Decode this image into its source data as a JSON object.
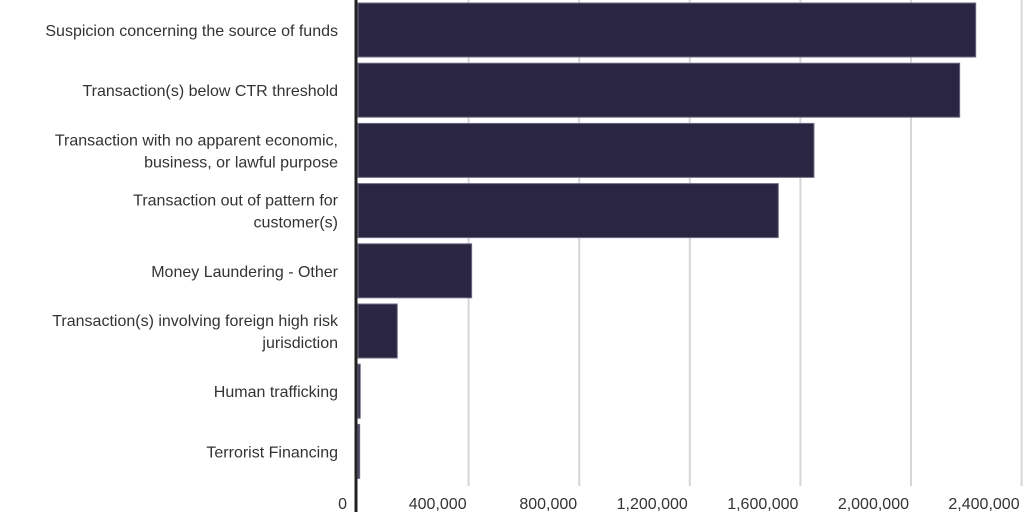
{
  "chart_data": {
    "type": "bar",
    "orientation": "horizontal",
    "title": "",
    "xlabel": "",
    "ylabel": "",
    "categories": [
      [
        "Suspicion concerning the source of funds"
      ],
      [
        "Transaction(s) below CTR threshold"
      ],
      [
        "Transaction with no apparent economic,",
        "business, or lawful purpose"
      ],
      [
        "Transaction out of pattern for",
        "customer(s)"
      ],
      [
        "Money Laundering - Other"
      ],
      [
        "Transaction(s) involving foreign high risk",
        "jurisdiction"
      ],
      [
        "Human trafficking"
      ],
      [
        "Terrorist Financing"
      ]
    ],
    "values": [
      2234000,
      2176000,
      1649000,
      1520000,
      411000,
      142000,
      8000,
      6000
    ],
    "xlim": [
      0,
      2400000
    ],
    "x_ticks": [
      0,
      400000,
      800000,
      1200000,
      1600000,
      2000000,
      2400000
    ],
    "x_tick_labels": [
      "0",
      "400,000",
      "800,000",
      "1,200,000",
      "1,600,000",
      "2,000,000",
      "2,400,000"
    ],
    "grid": "vertical",
    "legend": "none",
    "colors": {
      "bar": "#2a2540",
      "bar_edge": "#6e6a85",
      "grid": "#d6d6d6",
      "axis": "#222222"
    }
  }
}
